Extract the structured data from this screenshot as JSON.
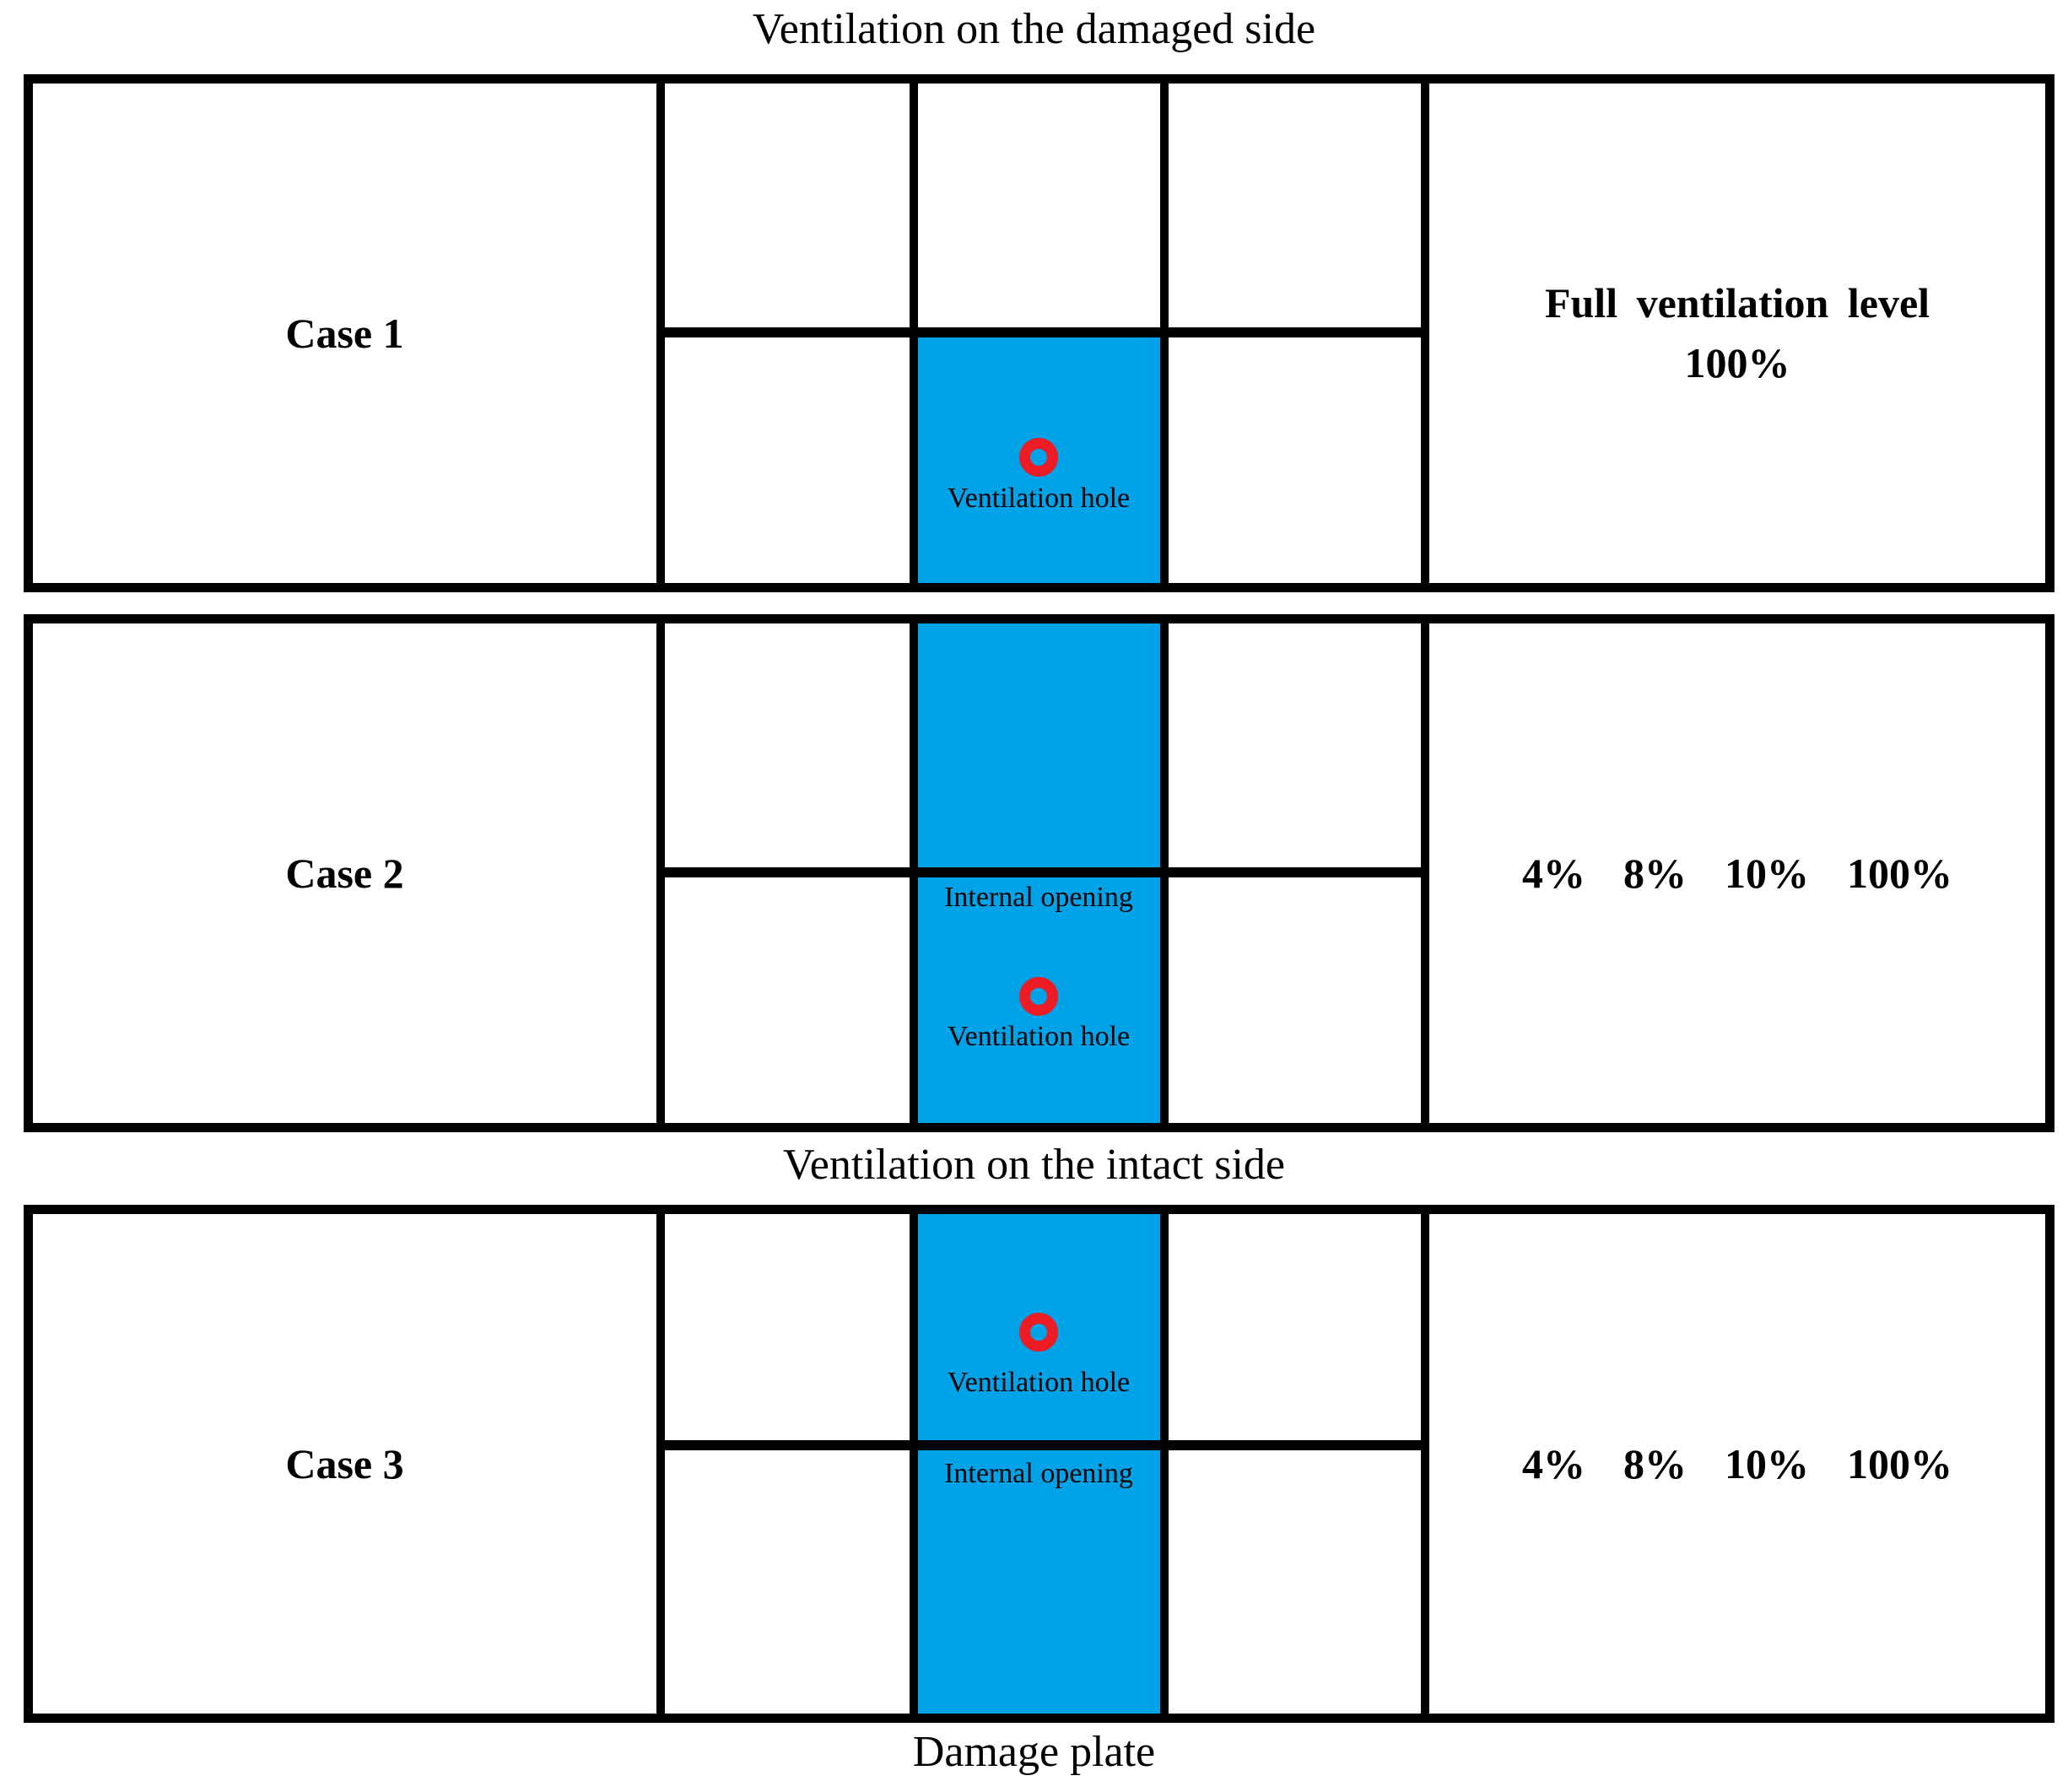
{
  "titles": {
    "top": "Ventilation on the damaged side",
    "middle": "Ventilation on the intact side",
    "bottom": "Damage plate"
  },
  "colors": {
    "damage_plate_blue": "#00A2E8",
    "ventilation_hole_red": "#ED1C24"
  },
  "cases": [
    {
      "label": "Case 1",
      "ventilation_hole_label": "Ventilation hole",
      "right_text_line1": "Full ventilation level",
      "right_text_line2": "100%"
    },
    {
      "label": "Case 2",
      "internal_opening_label": "Internal opening",
      "ventilation_hole_label": "Ventilation hole",
      "ventilation_levels": "4%  8%  10%  100%"
    },
    {
      "label": "Case 3",
      "ventilation_hole_label": "Ventilation hole",
      "internal_opening_label": "Internal opening",
      "ventilation_levels": "4%  8%  10%  100%"
    }
  ]
}
